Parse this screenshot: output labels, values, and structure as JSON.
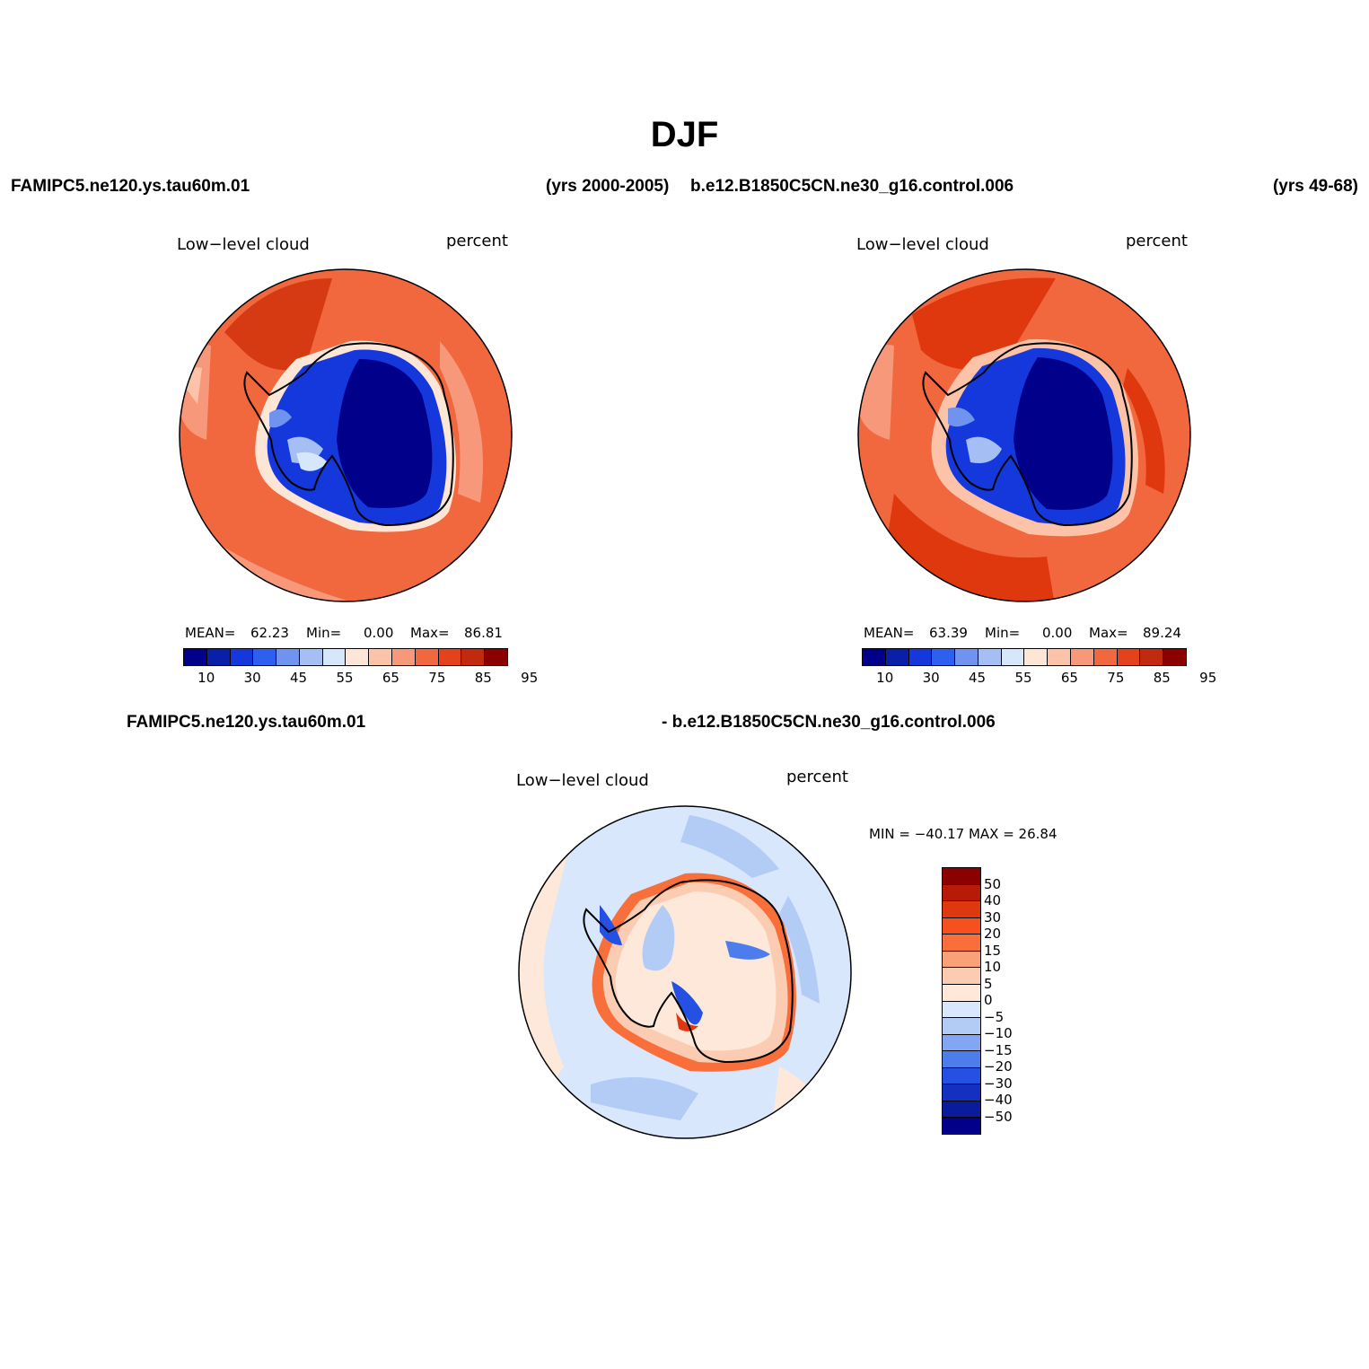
{
  "title": "DJF",
  "header": {
    "case1": "FAMIPC5.ne120.ys.tau60m.01",
    "case1_years": "(yrs 2000-2005)",
    "case2": "b.e12.B1850C5CN.ne30_g16.control.006",
    "case2_years": "(yrs 49-68)",
    "diff_left": "FAMIPC5.ne120.ys.tau60m.01",
    "diff_right": "- b.e12.B1850C5CN.ne30_g16.control.006"
  },
  "panels": [
    {
      "variable": "Low−level cloud",
      "units": "percent",
      "mean_label": "MEAN=",
      "mean": "62.23",
      "min_label": "Min=",
      "min": "0.00",
      "max_label": "Max=",
      "max": "86.81"
    },
    {
      "variable": "Low−level cloud",
      "units": "percent",
      "mean_label": "MEAN=",
      "mean": "63.39",
      "min_label": "Min=",
      "min": "0.00",
      "max_label": "Max=",
      "max": "89.24"
    }
  ],
  "diff_panel": {
    "variable": "Low−level cloud",
    "units": "percent",
    "minmax": "MIN = −40.17 MAX =   26.84"
  },
  "colorbar_abs": {
    "ticks": [
      "10",
      "30",
      "45",
      "55",
      "65",
      "75",
      "85",
      "95"
    ],
    "colors": [
      "#00008b",
      "#0a1fa8",
      "#1438dc",
      "#2e5ff0",
      "#6f93ef",
      "#a5bff5",
      "#d6e6fb",
      "#fde6d6",
      "#fcc3a8",
      "#f8987a",
      "#f1673e",
      "#e4421a",
      "#c22a10",
      "#8b0000"
    ]
  },
  "colorbar_diff": {
    "ticks": [
      "50",
      "40",
      "30",
      "20",
      "15",
      "10",
      "5",
      "0",
      "−5",
      "−10",
      "−15",
      "−20",
      "−30",
      "−40",
      "−50"
    ],
    "colors": [
      "#8b0000",
      "#b81a08",
      "#e0380e",
      "#f5501e",
      "#f86f3c",
      "#fba17a",
      "#fcccb2",
      "#fde8da",
      "#d8e7fb",
      "#b2ccf6",
      "#82a6f2",
      "#4d7ced",
      "#2550e4",
      "#1430c0",
      "#0a1c9c",
      "#00008b"
    ]
  },
  "chart_data": [
    {
      "type": "heatmap",
      "projection": "south-polar-stereographic",
      "title": "Low−level cloud",
      "units": "percent",
      "stats": {
        "mean": 62.23,
        "min": 0.0,
        "max": 86.81
      },
      "levels": [
        10,
        20,
        30,
        40,
        45,
        50,
        55,
        60,
        65,
        70,
        75,
        80,
        85,
        90,
        95
      ]
    },
    {
      "type": "heatmap",
      "projection": "south-polar-stereographic",
      "title": "Low−level cloud",
      "units": "percent",
      "stats": {
        "mean": 63.39,
        "min": 0.0,
        "max": 89.24
      },
      "levels": [
        10,
        20,
        30,
        40,
        45,
        50,
        55,
        60,
        65,
        70,
        75,
        80,
        85,
        90,
        95
      ]
    },
    {
      "type": "heatmap",
      "projection": "south-polar-stereographic",
      "title": "Low−level cloud",
      "units": "percent",
      "stats": {
        "min": -40.17,
        "max": 26.84
      },
      "levels": [
        -50,
        -40,
        -30,
        -20,
        -15,
        -10,
        -5,
        0,
        5,
        10,
        15,
        20,
        30,
        40,
        50
      ]
    }
  ]
}
